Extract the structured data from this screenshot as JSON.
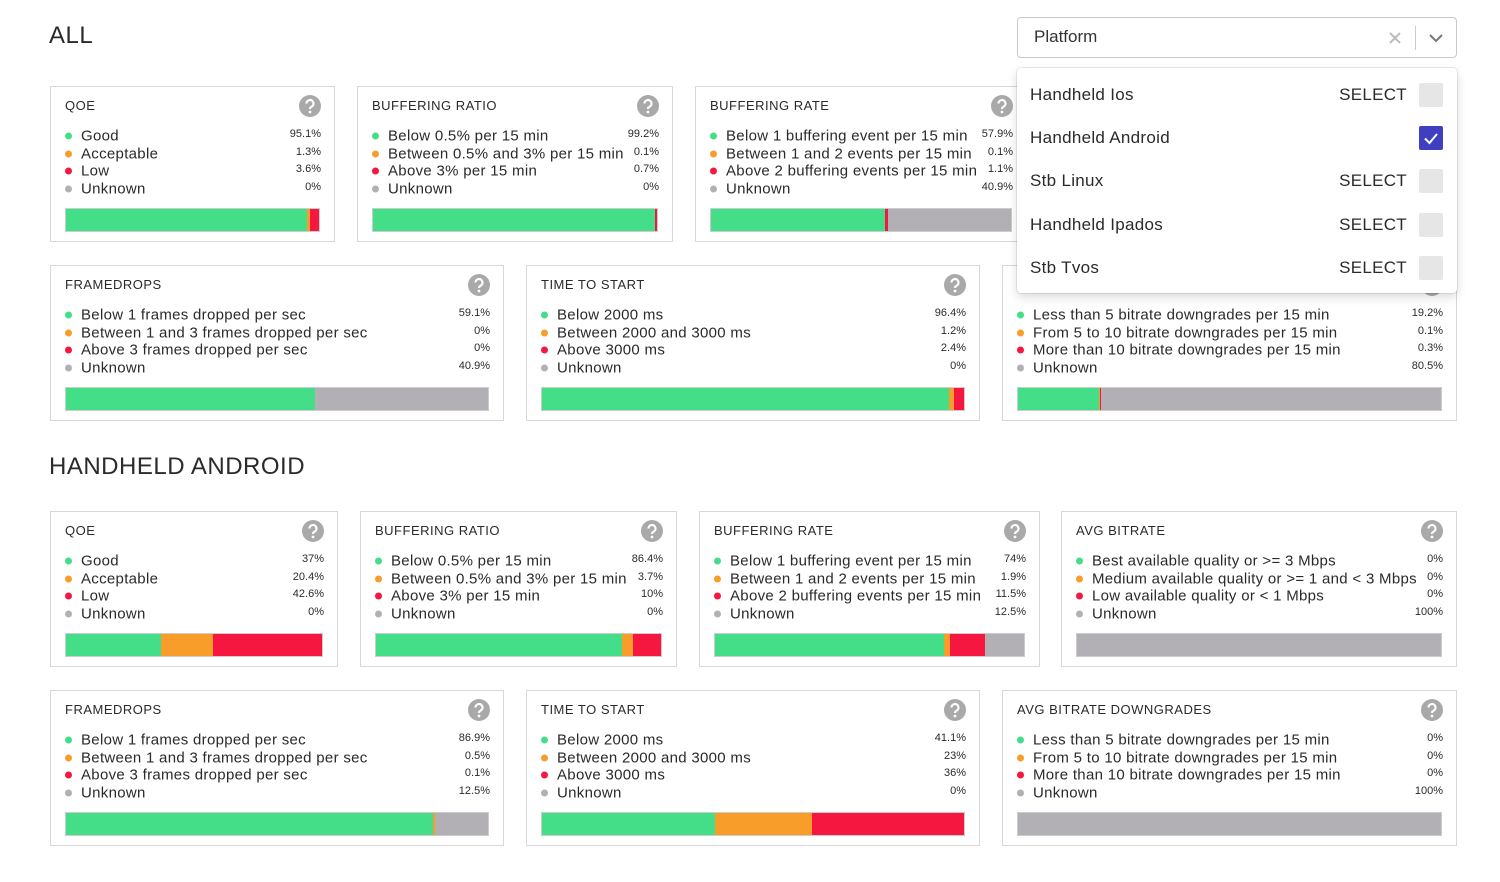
{
  "sections": [
    {
      "title": "ALL",
      "cards": [
        {
          "title": "QOE",
          "labels": [
            "Good",
            "Acceptable",
            "Low",
            "Unknown"
          ],
          "values": [
            95.1,
            1.3,
            3.6,
            0
          ],
          "value_labels": [
            "95.1%",
            "1.3%",
            "3.6%",
            "0%"
          ]
        },
        {
          "title": "BUFFERING RATIO",
          "labels": [
            "Below 0.5% per 15 min",
            "Between 0.5% and 3% per 15 min",
            "Above 3% per 15 min",
            "Unknown"
          ],
          "values": [
            99.2,
            0.1,
            0.7,
            0
          ],
          "value_labels": [
            "99.2%",
            "0.1%",
            "0.7%",
            "0%"
          ]
        },
        {
          "title": "BUFFERING RATE",
          "labels": [
            "Below 1 buffering event per 15 min",
            "Between 1 and 2 events per 15 min",
            "Above 2 buffering events per 15 min",
            "Unknown"
          ],
          "values": [
            57.9,
            0.1,
            1.1,
            40.9
          ],
          "value_labels": [
            "57.9%",
            "0.1%",
            "1.1%",
            "40.9%"
          ]
        },
        {
          "title": "FRAMEDROPS",
          "labels": [
            "Below 1 frames dropped per sec",
            "Between 1 and 3 frames dropped per sec",
            "Above 3 frames dropped per sec",
            "Unknown"
          ],
          "values": [
            59.1,
            0,
            0,
            40.9
          ],
          "value_labels": [
            "59.1%",
            "0%",
            "0%",
            "40.9%"
          ]
        },
        {
          "title": "TIME TO START",
          "labels": [
            "Below 2000 ms",
            "Between 2000 and 3000 ms",
            "Above 3000 ms",
            "Unknown"
          ],
          "values": [
            96.4,
            1.2,
            2.4,
            0
          ],
          "value_labels": [
            "96.4%",
            "1.2%",
            "2.4%",
            "0%"
          ]
        },
        {
          "labels": [
            "Less than 5 bitrate downgrades per 15 min",
            "From 5 to 10 bitrate downgrades per 15 min",
            "More than 10 bitrate downgrades per 15 min",
            "Unknown"
          ],
          "values": [
            19.2,
            0.1,
            0.3,
            80.5
          ],
          "value_labels": [
            "19.2%",
            "0.1%",
            "0.3%",
            "80.5%"
          ]
        }
      ]
    },
    {
      "title": "HANDHELD ANDROID",
      "cards": [
        {
          "title": "QOE",
          "labels": [
            "Good",
            "Acceptable",
            "Low",
            "Unknown"
          ],
          "values": [
            37,
            20.4,
            42.6,
            0
          ],
          "value_labels": [
            "37%",
            "20.4%",
            "42.6%",
            "0%"
          ]
        },
        {
          "title": "BUFFERING RATIO",
          "labels": [
            "Below 0.5% per 15 min",
            "Between 0.5% and 3% per 15 min",
            "Above 3% per 15 min",
            "Unknown"
          ],
          "values": [
            86.4,
            3.7,
            10,
            0
          ],
          "value_labels": [
            "86.4%",
            "3.7%",
            "10%",
            "0%"
          ]
        },
        {
          "title": "BUFFERING RATE",
          "labels": [
            "Below 1 buffering event per 15 min",
            "Between 1 and 2 events per 15 min",
            "Above 2 buffering events per 15 min",
            "Unknown"
          ],
          "values": [
            74,
            1.9,
            11.5,
            12.5
          ],
          "value_labels": [
            "74%",
            "1.9%",
            "11.5%",
            "12.5%"
          ]
        },
        {
          "title": "AVG BITRATE",
          "labels": [
            "Best available quality or >= 3 Mbps",
            "Medium available quality or >= 1 and < 3 Mbps",
            "Low available quality or < 1 Mbps",
            "Unknown"
          ],
          "values": [
            0,
            0,
            0,
            100
          ],
          "value_labels": [
            "0%",
            "0%",
            "0%",
            "100%"
          ]
        },
        {
          "title": "FRAMEDROPS",
          "labels": [
            "Below 1 frames dropped per sec",
            "Between 1 and 3 frames dropped per sec",
            "Above 3 frames dropped per sec",
            "Unknown"
          ],
          "values": [
            86.9,
            0.5,
            0.1,
            12.5
          ],
          "value_labels": [
            "86.9%",
            "0.5%",
            "0.1%",
            "12.5%"
          ]
        },
        {
          "title": "TIME TO START",
          "labels": [
            "Below 2000 ms",
            "Between 2000 and 3000 ms",
            "Above 3000 ms",
            "Unknown"
          ],
          "values": [
            41.1,
            23,
            36,
            0
          ],
          "value_labels": [
            "41.1%",
            "23%",
            "36%",
            "0%"
          ]
        },
        {
          "title": "AVG BITRATE DOWNGRADES",
          "labels": [
            "Less than 5 bitrate downgrades per 15 min",
            "From 5 to 10 bitrate downgrades per 15 min",
            "More than 10 bitrate downgrades per 15 min",
            "Unknown"
          ],
          "values": [
            0,
            0,
            0,
            100
          ],
          "value_labels": [
            "0%",
            "0%",
            "0%",
            "100%"
          ]
        }
      ]
    }
  ],
  "segment_colors": [
    "#44dd88",
    "#f99d2a",
    "#f5173f",
    "#b3b0b5"
  ],
  "platform_filter": {
    "placeholder": "Platform",
    "options": [
      {
        "label": "Handheld Ios",
        "action": "SELECT",
        "selected": false
      },
      {
        "label": "Handheld Android",
        "selected": true
      },
      {
        "label": "Stb Linux",
        "action": "SELECT",
        "selected": false
      },
      {
        "label": "Handheld Ipados",
        "action": "SELECT",
        "selected": false
      },
      {
        "label": "Stb Tvos",
        "action": "SELECT",
        "selected": false
      }
    ]
  }
}
